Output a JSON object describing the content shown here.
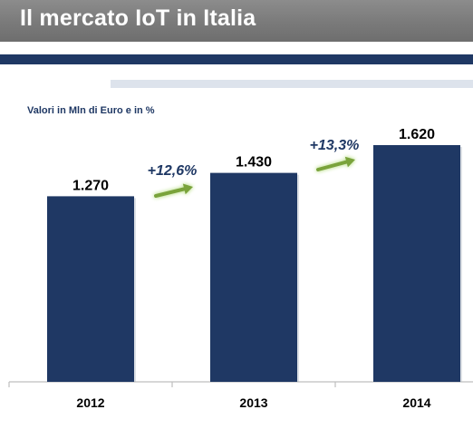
{
  "slide": {
    "title": "Il mercato IoT in Italia"
  },
  "chart_data": {
    "type": "bar",
    "subtitle": "Valori in Mln di Euro e in %",
    "categories": [
      "2012",
      "2013",
      "2014"
    ],
    "values": [
      1270,
      1430,
      1620
    ],
    "value_labels": [
      "1.270",
      "1.430",
      "1.620"
    ],
    "growth_labels": [
      "+12,6%",
      "+13,3%"
    ],
    "ylim": [
      0,
      1800
    ],
    "xlabel": "",
    "ylabel": "",
    "grid": false,
    "legend": "none",
    "colors": {
      "bar": "#1f3864",
      "growth_text": "#1f3864",
      "arrow": "#7aa33a",
      "arrow_glow": "#c8e6a0",
      "axis": "#bfbfbf",
      "label_text": "#000000"
    }
  }
}
